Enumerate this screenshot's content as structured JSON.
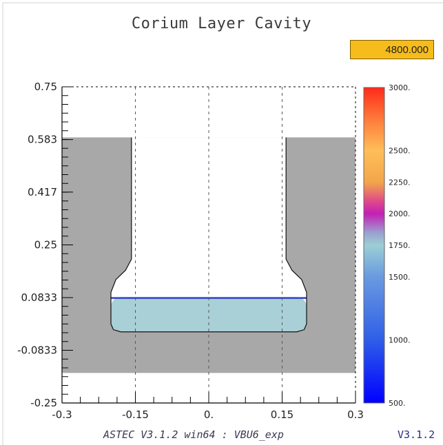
{
  "header": {
    "title": "Corium Layer Cavity",
    "time_value": "4800.000"
  },
  "footer": {
    "run_label": "ASTEC  V3.1.2  win64  :  VBU6_exp",
    "version": "V3.1.2"
  },
  "colors": {
    "concrete": "#a8a8a8",
    "corium_fill": "#a8d0d6",
    "corium_top_layer": "#4050c8",
    "outline": "#111111",
    "grid": "#555555"
  },
  "chart_data": {
    "type": "heatmap",
    "title": "Corium Layer Cavity",
    "xlabel": "",
    "ylabel": "",
    "xlim": [
      -0.3,
      0.3
    ],
    "ylim": [
      -0.25,
      0.75
    ],
    "x_ticks": [
      {
        "value": -0.3,
        "label": "-0.3"
      },
      {
        "value": -0.15,
        "label": "-0.15"
      },
      {
        "value": 0,
        "label": "0."
      },
      {
        "value": 0.15,
        "label": "0.15"
      },
      {
        "value": 0.3,
        "label": "0.3"
      }
    ],
    "y_ticks": [
      {
        "value": 0.75,
        "label": "0.75"
      },
      {
        "value": 0.583,
        "label": "0.583"
      },
      {
        "value": 0.417,
        "label": "0.417"
      },
      {
        "value": 0.25,
        "label": "0.25"
      },
      {
        "value": 0.0833,
        "label": "0.0833"
      },
      {
        "value": -0.0833,
        "label": "-0.0833"
      },
      {
        "value": -0.25,
        "label": "-0.25"
      }
    ],
    "concrete_region": {
      "x": [
        -0.3,
        0.3
      ],
      "y": [
        -0.155,
        0.59
      ]
    },
    "cavity_profile": [
      [
        -0.158,
        0.59
      ],
      [
        -0.158,
        0.205
      ],
      [
        -0.17,
        0.17
      ],
      [
        -0.19,
        0.14
      ],
      [
        -0.2,
        0.1
      ],
      [
        -0.2,
        0.0
      ],
      [
        -0.195,
        -0.018
      ],
      [
        -0.18,
        -0.025
      ],
      [
        0.18,
        -0.025
      ],
      [
        0.195,
        -0.018
      ],
      [
        0.2,
        0.0
      ],
      [
        0.2,
        0.1
      ],
      [
        0.19,
        0.14
      ],
      [
        0.17,
        0.17
      ],
      [
        0.158,
        0.205
      ],
      [
        0.158,
        0.59
      ]
    ],
    "corium_pool": {
      "x": [
        -0.2,
        0.2
      ],
      "y": [
        -0.025,
        0.085
      ],
      "top_layer_thickness": 0.006
    },
    "colorbar": {
      "min": 500,
      "max": 3000,
      "labels": [
        "3000.",
        "2500.",
        "2250.",
        "2000.",
        "1750.",
        "1500.",
        "1000.",
        "500."
      ],
      "label_values": [
        3000,
        2500,
        2250,
        2000,
        1750,
        1500,
        1000,
        500
      ],
      "gradient": [
        {
          "value": 500,
          "color": "#0000ff"
        },
        {
          "value": 1000,
          "color": "#2f5ee8"
        },
        {
          "value": 1500,
          "color": "#6a9ae0"
        },
        {
          "value": 1750,
          "color": "#9ccfd4"
        },
        {
          "value": 1850,
          "color": "#9b9fd0"
        },
        {
          "value": 2000,
          "color": "#c41fb4"
        },
        {
          "value": 2100,
          "color": "#e04a8a"
        },
        {
          "value": 2250,
          "color": "#f2a64a"
        },
        {
          "value": 2500,
          "color": "#ffbe5a"
        },
        {
          "value": 2750,
          "color": "#ff7a3a"
        },
        {
          "value": 3000,
          "color": "#ff2a1a"
        }
      ]
    },
    "grid": "dashed verticals at -0.15, 0, 0.15; dotted frame on top and right"
  }
}
